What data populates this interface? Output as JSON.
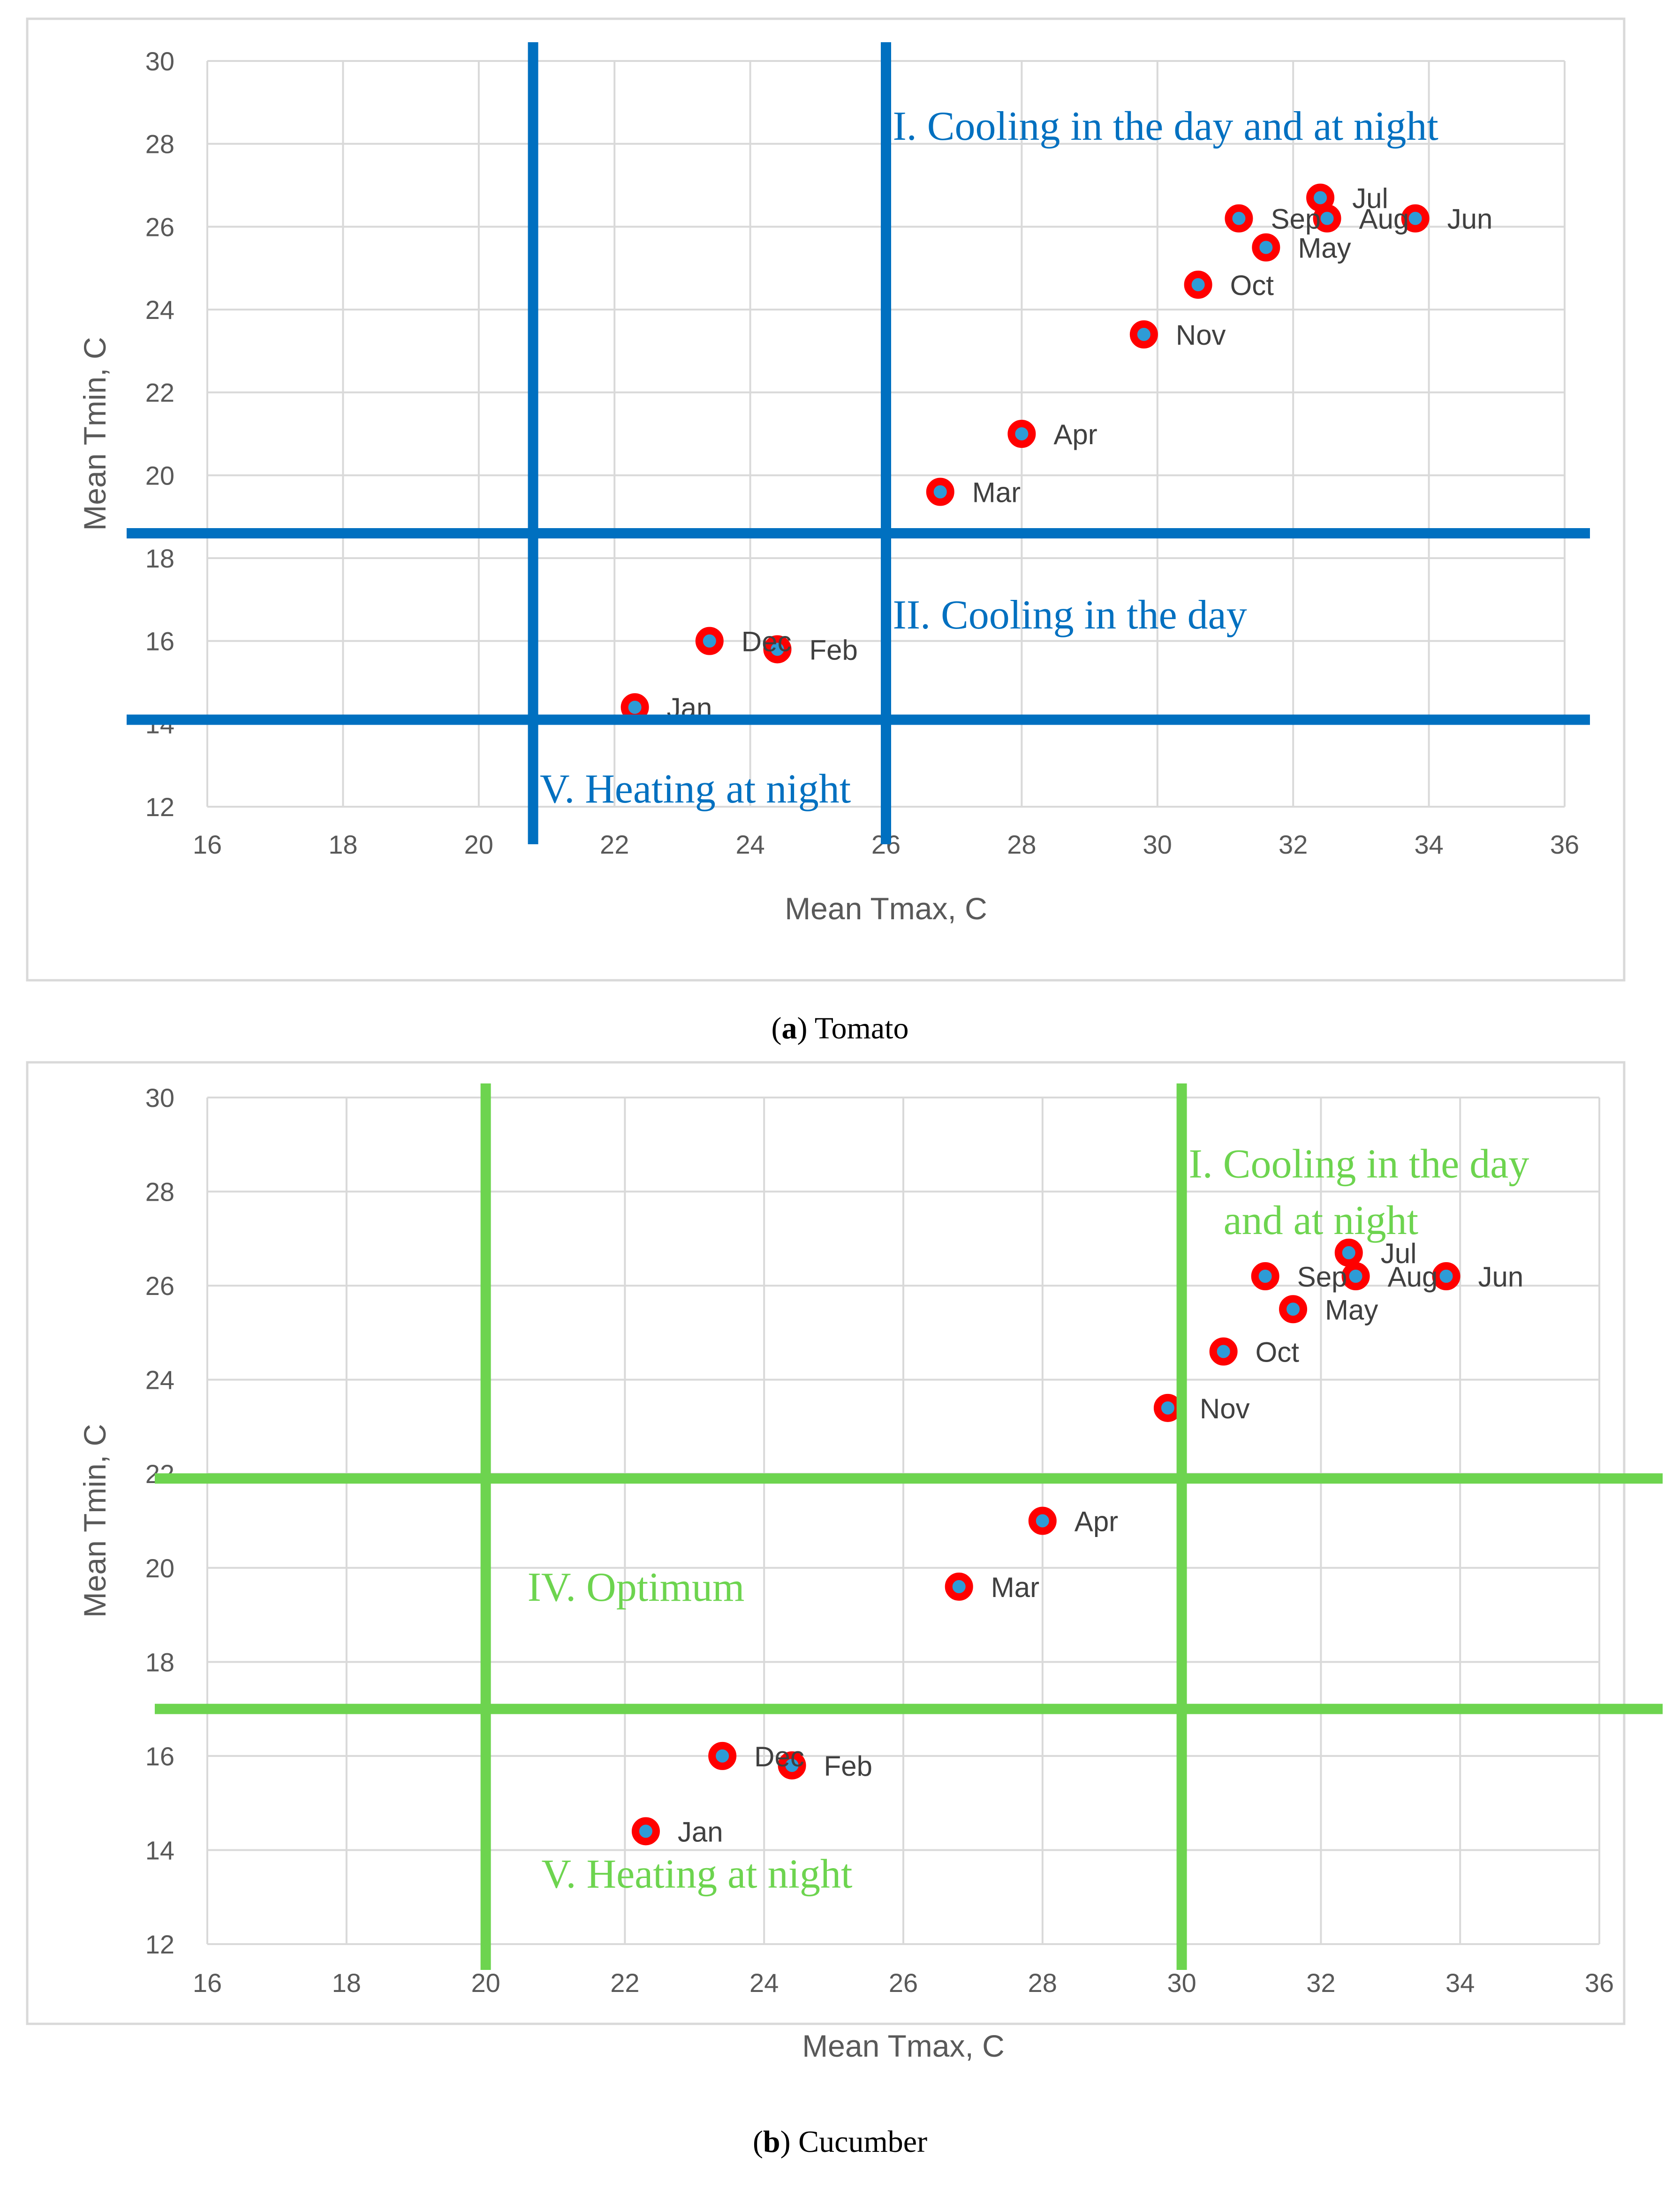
{
  "figure": {
    "captions": [
      {
        "letter": "a",
        "text": " Tomato"
      },
      {
        "letter": "b",
        "text": " Cucumber"
      }
    ]
  },
  "chart_data": [
    {
      "type": "scatter",
      "title": "",
      "xlabel": "Mean Tmax, C",
      "ylabel": "Mean Tmin, C",
      "xlim": [
        16,
        36
      ],
      "ylim": [
        12,
        30
      ],
      "xticks": [
        16,
        18,
        20,
        22,
        24,
        26,
        28,
        30,
        32,
        34,
        36
      ],
      "yticks": [
        12,
        14,
        16,
        18,
        20,
        22,
        24,
        26,
        28,
        30
      ],
      "grid": true,
      "zone_color": "#0070C0",
      "vlines": [
        20.8,
        26
      ],
      "hlines": [
        18.6,
        14.1
      ],
      "zones": [
        {
          "label": "I. Cooling in the day and at night",
          "x": 26.1,
          "y": 28.1
        },
        {
          "label": "II. Cooling in the day",
          "x": 26.1,
          "y": 16.3
        },
        {
          "label": "V. Heating at night",
          "x": 20.9,
          "y": 12.1
        }
      ],
      "points": [
        {
          "label": "Jan",
          "x": 22.3,
          "y": 14.4
        },
        {
          "label": "Feb",
          "x": 24.4,
          "y": 15.8
        },
        {
          "label": "Mar",
          "x": 26.8,
          "y": 19.6
        },
        {
          "label": "Apr",
          "x": 28.0,
          "y": 21.0
        },
        {
          "label": "May",
          "x": 31.6,
          "y": 25.5
        },
        {
          "label": "Jun",
          "x": 33.8,
          "y": 26.2
        },
        {
          "label": "Jul",
          "x": 32.4,
          "y": 26.7
        },
        {
          "label": "Aug",
          "x": 32.5,
          "y": 26.2
        },
        {
          "label": "Sep",
          "x": 31.2,
          "y": 26.2
        },
        {
          "label": "Oct",
          "x": 30.6,
          "y": 24.6
        },
        {
          "label": "Nov",
          "x": 29.8,
          "y": 23.4
        },
        {
          "label": "Dec",
          "x": 23.4,
          "y": 16.0
        }
      ]
    },
    {
      "type": "scatter",
      "title": "",
      "xlabel": "Mean Tmax, C",
      "ylabel": "Mean Tmin, C",
      "xlim": [
        16,
        36
      ],
      "ylim": [
        12,
        30
      ],
      "xticks": [
        16,
        18,
        20,
        22,
        24,
        26,
        28,
        30,
        32,
        34,
        36
      ],
      "yticks": [
        12,
        14,
        16,
        18,
        20,
        22,
        24,
        26,
        28,
        30
      ],
      "grid": true,
      "zone_color": "#6DD44F",
      "vlines": [
        20,
        30
      ],
      "hlines": [
        21.9,
        17.0
      ],
      "zones": [
        {
          "label": "I. Cooling in the day",
          "x": 30.1,
          "y": 28.3
        },
        {
          "label": "and at night",
          "x": 30.6,
          "y": 27.1
        },
        {
          "label": "IV. Optimum",
          "x": 20.6,
          "y": 19.3
        },
        {
          "label": "V. Heating at night",
          "x": 20.8,
          "y": 13.2
        }
      ],
      "points": [
        {
          "label": "Jan",
          "x": 22.3,
          "y": 14.4
        },
        {
          "label": "Feb",
          "x": 24.4,
          "y": 15.8
        },
        {
          "label": "Mar",
          "x": 26.8,
          "y": 19.6
        },
        {
          "label": "Apr",
          "x": 28.0,
          "y": 21.0
        },
        {
          "label": "May",
          "x": 31.6,
          "y": 25.5
        },
        {
          "label": "Jun",
          "x": 33.8,
          "y": 26.2
        },
        {
          "label": "Jul",
          "x": 32.4,
          "y": 26.7
        },
        {
          "label": "Aug",
          "x": 32.5,
          "y": 26.2
        },
        {
          "label": "Sep",
          "x": 31.2,
          "y": 26.2
        },
        {
          "label": "Oct",
          "x": 30.6,
          "y": 24.6
        },
        {
          "label": "Nov",
          "x": 29.8,
          "y": 23.4
        },
        {
          "label": "Dec",
          "x": 23.4,
          "y": 16.0
        }
      ]
    }
  ]
}
